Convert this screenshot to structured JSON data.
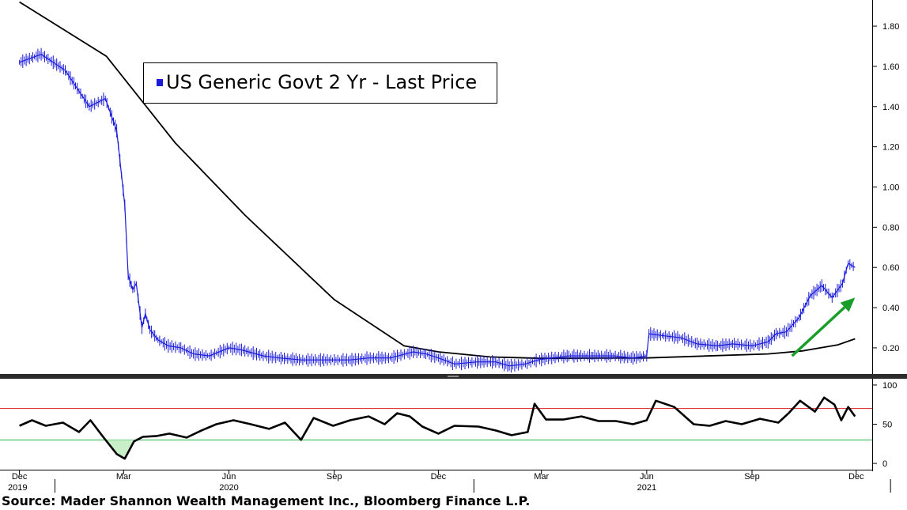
{
  "source": "Source: Mader Shannon Wealth Management Inc., Bloomberg Finance L.P.",
  "chart_data": [
    {
      "type": "line",
      "panel": "price",
      "legend": "US Generic Govt 2 Yr - Last Price",
      "colors": {
        "price": "#1a1adb",
        "moving_average": "#000000",
        "arrow": "#1a9e2a"
      },
      "y_ticks": [
        "0.20",
        "0.40",
        "0.60",
        "0.80",
        "1.00",
        "1.20",
        "1.40",
        "1.60",
        "1.80"
      ],
      "ylim": [
        0.07,
        1.93
      ],
      "grid": false,
      "series": [
        {
          "name": "US Generic Govt 2 Yr - Last Price",
          "x": [
            "2019-12-01",
            "2019-12-20",
            "2020-01-10",
            "2020-01-31",
            "2020-02-14",
            "2020-02-24",
            "2020-03-02",
            "2020-03-05",
            "2020-03-09",
            "2020-03-12",
            "2020-03-17",
            "2020-03-20",
            "2020-03-24",
            "2020-03-31",
            "2020-04-09",
            "2020-04-20",
            "2020-05-01",
            "2020-05-15",
            "2020-06-01",
            "2020-06-12",
            "2020-07-01",
            "2020-07-15",
            "2020-08-03",
            "2020-08-20",
            "2020-09-01",
            "2020-09-15",
            "2020-10-01",
            "2020-10-20",
            "2020-11-09",
            "2020-11-20",
            "2020-12-01",
            "2020-12-15",
            "2021-01-04",
            "2021-01-20",
            "2021-02-01",
            "2021-02-15",
            "2021-02-26",
            "2021-03-10",
            "2021-03-25",
            "2021-04-15",
            "2021-05-03",
            "2021-05-20",
            "2021-06-01",
            "2021-06-03",
            "2021-06-16",
            "2021-07-01",
            "2021-07-15",
            "2021-08-02",
            "2021-08-15",
            "2021-09-01",
            "2021-09-15",
            "2021-09-22",
            "2021-10-01",
            "2021-10-12",
            "2021-10-22",
            "2021-11-01",
            "2021-11-10",
            "2021-11-19",
            "2021-11-24",
            "2021-11-30"
          ],
          "y": [
            1.62,
            1.66,
            1.58,
            1.4,
            1.44,
            1.28,
            0.91,
            0.56,
            0.49,
            0.52,
            0.3,
            0.37,
            0.29,
            0.24,
            0.21,
            0.2,
            0.17,
            0.16,
            0.2,
            0.19,
            0.16,
            0.15,
            0.14,
            0.14,
            0.14,
            0.14,
            0.15,
            0.15,
            0.18,
            0.17,
            0.15,
            0.12,
            0.13,
            0.13,
            0.11,
            0.12,
            0.14,
            0.15,
            0.16,
            0.16,
            0.16,
            0.15,
            0.16,
            0.27,
            0.26,
            0.25,
            0.22,
            0.21,
            0.22,
            0.21,
            0.23,
            0.27,
            0.28,
            0.35,
            0.46,
            0.51,
            0.45,
            0.52,
            0.62,
            0.6
          ]
        },
        {
          "name": "",
          "x": [
            "2019-12-01",
            "2020-02-15",
            "2020-04-15",
            "2020-06-15",
            "2020-09-01",
            "2020-11-01",
            "2020-12-01",
            "2021-01-15",
            "2021-03-01",
            "2021-06-01",
            "2021-09-15",
            "2021-10-15",
            "2021-11-15",
            "2021-11-30"
          ],
          "y": [
            1.92,
            1.65,
            1.22,
            0.86,
            0.44,
            0.21,
            0.18,
            0.155,
            0.148,
            0.15,
            0.17,
            0.185,
            0.215,
            0.245
          ]
        }
      ],
      "annotation": {
        "type": "arrow",
        "from": [
          "2021-10-06",
          0.16
        ],
        "to": [
          "2021-11-30",
          0.45
        ]
      }
    },
    {
      "type": "line",
      "panel": "oscillator",
      "y_ticks": [
        "0",
        "50",
        "100"
      ],
      "ylim": [
        -8,
        108
      ],
      "reference_lines": [
        {
          "value": 70,
          "color": "#d42020"
        },
        {
          "value": 30,
          "color": "#22b24c"
        }
      ],
      "shaded_fill_color": "#c8efc8",
      "series": [
        {
          "name": "",
          "x": [
            "2019-12-01",
            "2019-12-12",
            "2019-12-24",
            "2020-01-08",
            "2020-01-22",
            "2020-02-01",
            "2020-02-12",
            "2020-02-24",
            "2020-03-02",
            "2020-03-10",
            "2020-03-18",
            "2020-03-30",
            "2020-04-10",
            "2020-04-25",
            "2020-05-08",
            "2020-05-21",
            "2020-06-05",
            "2020-06-20",
            "2020-07-06",
            "2020-07-20",
            "2020-08-03",
            "2020-08-14",
            "2020-08-31",
            "2020-09-15",
            "2020-10-01",
            "2020-10-15",
            "2020-10-26",
            "2020-11-06",
            "2020-11-17",
            "2020-12-01",
            "2020-12-15",
            "2021-01-05",
            "2021-01-20",
            "2021-02-03",
            "2021-02-17",
            "2021-02-23",
            "2021-03-05",
            "2021-03-20",
            "2021-04-05",
            "2021-04-20",
            "2021-05-05",
            "2021-05-20",
            "2021-06-01",
            "2021-06-09",
            "2021-06-25",
            "2021-07-12",
            "2021-07-26",
            "2021-08-09",
            "2021-08-23",
            "2021-09-08",
            "2021-09-24",
            "2021-10-03",
            "2021-10-13",
            "2021-10-26",
            "2021-11-03",
            "2021-11-12",
            "2021-11-18",
            "2021-11-24",
            "2021-11-30"
          ],
          "y": [
            48,
            55,
            48,
            52,
            40,
            55,
            34,
            12,
            6,
            28,
            34,
            35,
            38,
            33,
            42,
            50,
            55,
            50,
            44,
            52,
            30,
            58,
            48,
            55,
            60,
            50,
            64,
            60,
            47,
            38,
            48,
            47,
            42,
            36,
            40,
            76,
            56,
            56,
            60,
            54,
            54,
            50,
            55,
            80,
            72,
            50,
            48,
            54,
            50,
            57,
            52,
            64,
            80,
            66,
            84,
            75,
            55,
            72,
            60
          ]
        }
      ]
    }
  ],
  "x_axis": {
    "month_labels": [
      "Dec",
      "Mar",
      "Jun",
      "Sep",
      "Dec",
      "Mar",
      "Jun",
      "Sep",
      "Dec"
    ],
    "month_dates": [
      "2019-12-01",
      "2020-03-01",
      "2020-06-01",
      "2020-09-01",
      "2020-12-01",
      "2021-03-01",
      "2021-06-01",
      "2021-09-01",
      "2021-12-01"
    ],
    "year_labels": [
      "2019",
      "2020",
      "2021"
    ],
    "year_dates": [
      "2019-12-01",
      "2020-06-01",
      "2021-06-01"
    ]
  }
}
